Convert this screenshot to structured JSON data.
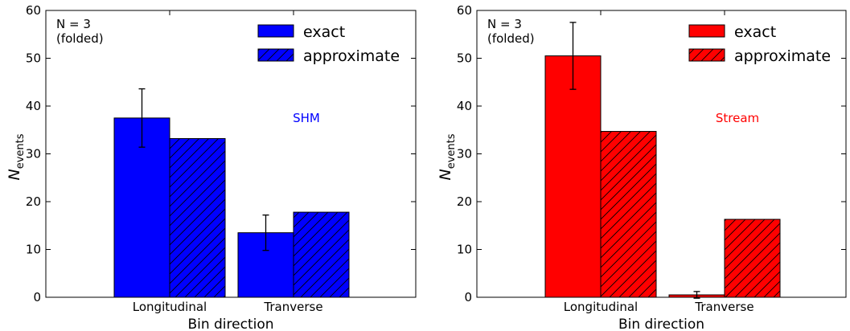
{
  "chart_data": [
    {
      "type": "bar",
      "panel_label": "SHM",
      "annotation": [
        "N = 3",
        "(folded)"
      ],
      "categories": [
        "Longitudinal",
        "Tranverse"
      ],
      "xlabel": "Bin direction",
      "ylabel": "N",
      "ylabel_sub": "events",
      "ylim": [
        0,
        60
      ],
      "yticks": [
        0,
        10,
        20,
        30,
        40,
        50,
        60
      ],
      "color": "#0000ff",
      "label_color": "#0000ff",
      "legend_position": "top-right",
      "series": [
        {
          "name": "exact",
          "values": [
            37.5,
            13.5
          ],
          "errors": [
            6.1,
            3.7
          ],
          "hatch": false
        },
        {
          "name": "approximate",
          "values": [
            33.2,
            17.8
          ],
          "hatch": true
        }
      ]
    },
    {
      "type": "bar",
      "panel_label": "Stream",
      "annotation": [
        "N = 3",
        "(folded)"
      ],
      "categories": [
        "Longitudinal",
        "Tranverse"
      ],
      "xlabel": "Bin direction",
      "ylabel": "N",
      "ylabel_sub": "events",
      "ylim": [
        0,
        60
      ],
      "yticks": [
        0,
        10,
        20,
        30,
        40,
        50,
        60
      ],
      "color": "#ff0000",
      "label_color": "#ff0000",
      "legend_position": "top-right",
      "series": [
        {
          "name": "exact",
          "values": [
            50.5,
            0.5
          ],
          "errors": [
            7.0,
            0.7
          ],
          "hatch": false
        },
        {
          "name": "approximate",
          "values": [
            34.7,
            16.3
          ],
          "hatch": true
        }
      ]
    }
  ]
}
